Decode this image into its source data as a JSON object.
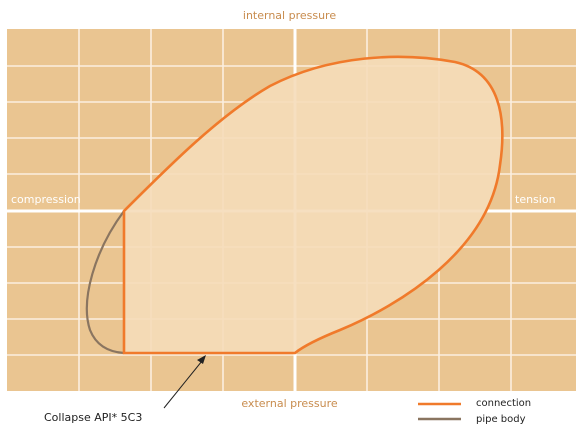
{
  "diagram": {
    "axes": {
      "top": "internal pressure",
      "bottom": "external pressure",
      "left": "compression",
      "right": "tension"
    },
    "annotation": "Collapse API* 5C3",
    "legend": [
      {
        "label": "connection",
        "color": "#f07a2b"
      },
      {
        "label": "pipe body",
        "color": "#8a7560"
      }
    ],
    "colors": {
      "grid_background": "#eac591",
      "grid_lines": "#fbefe0",
      "envelope_fill": "#f5dbb9",
      "axis_label_color": "#c88c4e"
    }
  }
}
